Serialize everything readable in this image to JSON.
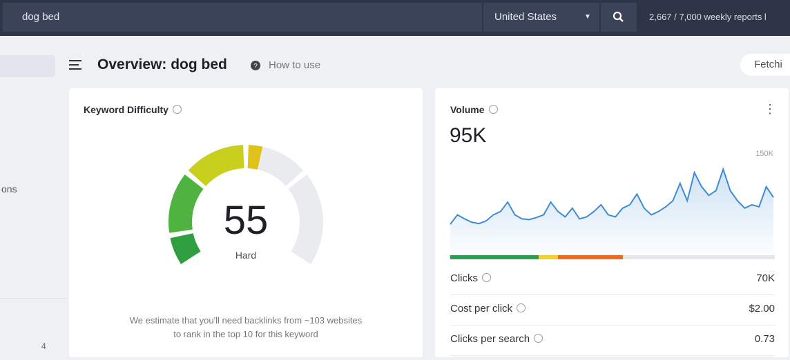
{
  "top_bar": {
    "search": "dog bed",
    "country": "United States",
    "reports": "2,667 / 7,000 weekly reports l"
  },
  "sidebar": {
    "label": "ons",
    "count": "4"
  },
  "header": {
    "title": "Overview: dog bed",
    "help": "How to use",
    "button": "Fetchi"
  },
  "difficulty": {
    "title": "Keyword Difficulty",
    "score": 55,
    "rating": "Hard",
    "note": [
      "We estimate that you'll need backlinks from ~103 websites",
      "to rank in the top 10 for this keyword"
    ]
  },
  "volume": {
    "title": "Volume",
    "total": "95K",
    "chart_data": {
      "type": "line",
      "color": "#3d8bd6",
      "ylim": [
        0,
        150
      ],
      "yticks": [
        {
          "value": 150,
          "label": "150K"
        }
      ],
      "values": [
        44,
        58,
        52,
        47,
        45,
        49,
        58,
        63,
        77,
        58,
        52,
        51,
        54,
        58,
        77,
        63,
        55,
        68,
        52,
        55,
        63,
        73,
        58,
        55,
        68,
        73,
        89,
        68,
        58,
        63,
        70,
        79,
        105,
        79,
        121,
        100,
        87,
        94,
        126,
        94,
        79,
        68,
        73,
        70,
        100,
        84
      ]
    }
  },
  "metrics": [
    {
      "label": "Clicks",
      "value": "70K"
    },
    {
      "label": "Cost per click",
      "value": "$2.00"
    },
    {
      "label": "Clicks per search",
      "value": "0.73"
    }
  ]
}
